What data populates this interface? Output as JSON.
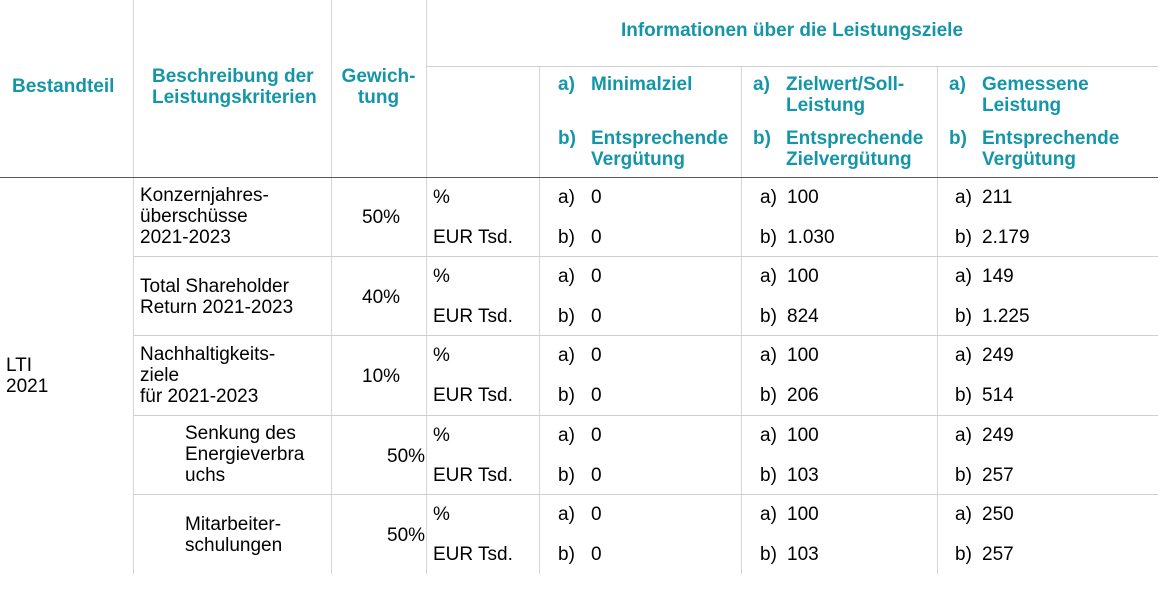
{
  "header": {
    "bestandteil": "Bestandteil",
    "beschreibung": [
      "Beschreibung der",
      "Leistungskriterien"
    ],
    "gewichtung": [
      "Gewich-",
      "tung"
    ],
    "info": "Informationen über die Leistungsziele",
    "columns": [
      {
        "a": [
          "Minimalziel"
        ],
        "b": [
          "Entsprechende",
          "Vergütung"
        ]
      },
      {
        "a": [
          "Zielwert/Soll-",
          "Leistung"
        ],
        "b": [
          "Entsprechende",
          "Zielvergütung"
        ]
      },
      {
        "a": [
          "Gemessene",
          "Leistung"
        ],
        "b": [
          "Entsprechende",
          "Vergütung"
        ]
      }
    ],
    "marker_a": "a)",
    "marker_b": "b)"
  },
  "component": [
    "LTI",
    "2021"
  ],
  "units": {
    "pct": "%",
    "eur": "EUR Tsd."
  },
  "rows": [
    {
      "desc": [
        "Konzernjahres-",
        "überschüsse",
        "2021-2023"
      ],
      "weight": "50%",
      "min": [
        "0",
        "0"
      ],
      "target": [
        "100",
        "1.030"
      ],
      "measured": [
        "211",
        "2.179"
      ]
    },
    {
      "desc": [
        "Total Shareholder",
        "Return 2021-2023"
      ],
      "weight": "40%",
      "min": [
        "0",
        "0"
      ],
      "target": [
        "100",
        "824"
      ],
      "measured": [
        "149",
        "1.225"
      ]
    },
    {
      "desc": [
        "Nachhaltigkeits-",
        "ziele",
        "für 2021-2023"
      ],
      "weight": "10%",
      "min": [
        "0",
        "0"
      ],
      "target": [
        "100",
        "206"
      ],
      "measured": [
        "249",
        "514"
      ]
    },
    {
      "desc": [
        "Senkung des",
        "Energieverbra",
        "uchs"
      ],
      "weight": "50%",
      "min": [
        "0",
        "0"
      ],
      "target": [
        "100",
        "103"
      ],
      "measured": [
        "249",
        "257"
      ]
    },
    {
      "desc": [
        "Mitarbeiter-",
        "schulungen"
      ],
      "weight": "50%",
      "min": [
        "0",
        "0"
      ],
      "target": [
        "100",
        "103"
      ],
      "measured": [
        "250",
        "257"
      ]
    }
  ]
}
